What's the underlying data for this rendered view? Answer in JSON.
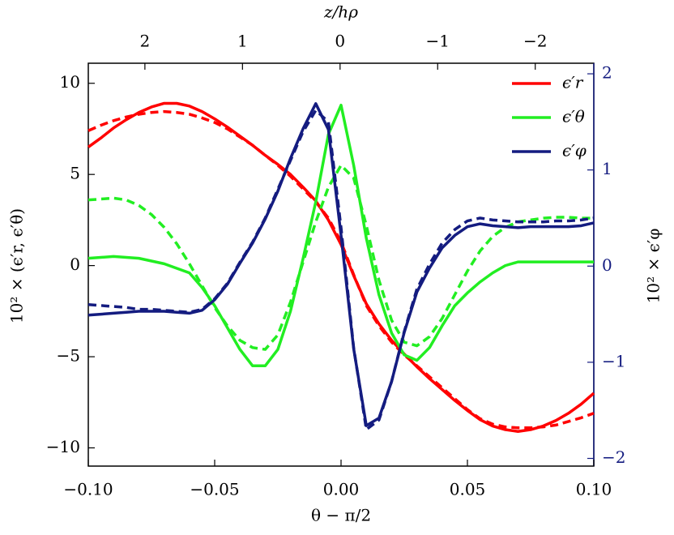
{
  "chart_data": {
    "type": "line",
    "xlabel": "θ − π/2",
    "ylabel": "10² × (ϵ′r, ϵ′θ)",
    "y2label": "10² × ϵ′φ",
    "x2label": "z/hρ",
    "x": [
      -0.1,
      -0.095,
      -0.09,
      -0.085,
      -0.08,
      -0.075,
      -0.07,
      -0.065,
      -0.06,
      -0.055,
      -0.05,
      -0.045,
      -0.04,
      -0.035,
      -0.03,
      -0.025,
      -0.02,
      -0.015,
      -0.01,
      -0.005,
      0,
      0.005,
      0.01,
      0.015,
      0.02,
      0.025,
      0.03,
      0.035,
      0.04,
      0.045,
      0.05,
      0.055,
      0.06,
      0.065,
      0.07,
      0.075,
      0.08,
      0.085,
      0.09,
      0.095,
      0.1
    ],
    "xlim": [
      -0.1,
      0.1
    ],
    "xticks": [
      {
        "value": -0.1,
        "label": "−0.10"
      },
      {
        "value": -0.05,
        "label": "−0.05"
      },
      {
        "value": 0,
        "label": "0.00"
      },
      {
        "value": 0.05,
        "label": "0.05"
      },
      {
        "value": 0.1,
        "label": "0.10"
      }
    ],
    "x2lim": [
      2.58,
      -2.6
    ],
    "x2ticks": [
      2,
      1,
      0,
      {
        "value": -1,
        "label": "−1"
      },
      {
        "value": -2,
        "label": "−2"
      }
    ],
    "ylim": [
      -11,
      11.1
    ],
    "yticks": [
      {
        "value": -10,
        "label": "−10"
      },
      {
        "value": -5,
        "label": "−5"
      },
      0,
      5,
      10
    ],
    "y2lim": [
      -2.08,
      2.11
    ],
    "y2ticks": [
      {
        "value": -2,
        "label": "−2"
      },
      {
        "value": -1,
        "label": "−1"
      },
      0,
      1,
      2
    ],
    "y2color": "#141c80",
    "legend": "upper right",
    "series": [
      {
        "name": "ϵ′r",
        "color": "#ff0000",
        "values": [
          6.5,
          7.0,
          7.55,
          8.0,
          8.4,
          8.7,
          8.9,
          8.9,
          8.75,
          8.45,
          8.05,
          7.6,
          7.1,
          6.6,
          6.05,
          5.55,
          5.0,
          4.3,
          3.55,
          2.5,
          1.15,
          -0.55,
          -2.1,
          -3.2,
          -4.1,
          -4.85,
          -5.55,
          -6.2,
          -6.8,
          -7.4,
          -7.95,
          -8.45,
          -8.8,
          -9.0,
          -9.1,
          -9.0,
          -8.8,
          -8.5,
          -8.1,
          -7.6,
          -7.0
        ]
      },
      {
        "color": "#ff0000",
        "dash": true,
        "values": [
          7.4,
          7.7,
          7.95,
          8.15,
          8.3,
          8.4,
          8.45,
          8.4,
          8.3,
          8.1,
          7.85,
          7.5,
          7.05,
          6.6,
          6.05,
          5.5,
          4.9,
          4.2,
          3.5,
          2.6,
          1.3,
          -0.5,
          -2.2,
          -3.3,
          -4.2,
          -4.9,
          -5.5,
          -6.1,
          -6.7,
          -7.3,
          -7.9,
          -8.4,
          -8.7,
          -8.85,
          -8.9,
          -8.9,
          -8.85,
          -8.75,
          -8.55,
          -8.35,
          -8.1
        ]
      },
      {
        "name": "ϵ′θ",
        "color": "#22ee22",
        "values": [
          0.4,
          0.45,
          0.5,
          0.45,
          0.4,
          0.25,
          0.1,
          -0.15,
          -0.4,
          -1.2,
          -2.2,
          -3.4,
          -4.6,
          -5.5,
          -5.5,
          -4.6,
          -2.5,
          0.4,
          3.5,
          7.2,
          8.8,
          5.5,
          1.5,
          -1.6,
          -3.7,
          -4.9,
          -5.2,
          -4.5,
          -3.3,
          -2.2,
          -1.5,
          -0.9,
          -0.4,
          0.0,
          0.2,
          0.2,
          0.2,
          0.2,
          0.2,
          0.2,
          0.2
        ]
      },
      {
        "color": "#22ee22",
        "dash": true,
        "values": [
          3.6,
          3.65,
          3.7,
          3.6,
          3.3,
          2.8,
          2.1,
          1.2,
          0.1,
          -1.1,
          -2.3,
          -3.3,
          -4.1,
          -4.5,
          -4.6,
          -3.8,
          -2.0,
          0.2,
          2.4,
          4.3,
          5.5,
          4.8,
          2.2,
          -0.8,
          -3.0,
          -4.2,
          -4.4,
          -3.9,
          -2.9,
          -1.6,
          -0.3,
          0.8,
          1.6,
          2.1,
          2.4,
          2.5,
          2.6,
          2.65,
          2.65,
          2.6,
          2.6
        ]
      },
      {
        "name": "ϵ′φ",
        "color": "#141c80",
        "axis": "y2",
        "values": [
          -0.51,
          -0.5,
          -0.49,
          -0.48,
          -0.47,
          -0.47,
          -0.47,
          -0.48,
          -0.49,
          -0.46,
          -0.35,
          -0.19,
          0.03,
          0.24,
          0.49,
          0.78,
          1.12,
          1.43,
          1.69,
          1.42,
          0.32,
          -0.86,
          -1.66,
          -1.58,
          -1.2,
          -0.69,
          -0.27,
          -0.02,
          0.19,
          0.32,
          0.41,
          0.44,
          0.42,
          0.41,
          0.4,
          0.41,
          0.41,
          0.41,
          0.41,
          0.42,
          0.45
        ]
      },
      {
        "color": "#141c80",
        "axis": "y2",
        "dash": true,
        "values": [
          -0.4,
          -0.41,
          -0.42,
          -0.43,
          -0.45,
          -0.45,
          -0.46,
          -0.47,
          -0.48,
          -0.45,
          -0.34,
          -0.18,
          0.04,
          0.25,
          0.5,
          0.8,
          1.1,
          1.4,
          1.62,
          1.5,
          0.4,
          -0.85,
          -1.7,
          -1.6,
          -1.2,
          -0.68,
          -0.24,
          0.02,
          0.24,
          0.38,
          0.47,
          0.5,
          0.48,
          0.47,
          0.46,
          0.46,
          0.46,
          0.47,
          0.47,
          0.48,
          0.5
        ]
      }
    ]
  }
}
